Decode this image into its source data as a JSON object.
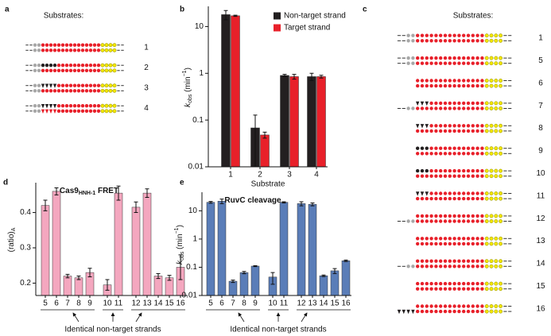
{
  "panel_labels": [
    "a",
    "b",
    "c",
    "d",
    "e"
  ],
  "substrates_a": {
    "title": "Substrates:",
    "labels": [
      "1",
      "2",
      "3",
      "4"
    ]
  },
  "substrates_c": {
    "title": "Substrates:",
    "labels": [
      "1",
      "5",
      "6",
      "7",
      "8",
      "9",
      "10",
      "11",
      "12",
      "13",
      "14",
      "15",
      "16"
    ]
  },
  "chart_data": [
    {
      "type": "bar",
      "ylabel": [
        "k",
        "obs",
        " (min",
        "−1",
        ")"
      ],
      "xlabel": "Substrate",
      "categories": [
        "1",
        "2",
        "3",
        "4"
      ],
      "series": [
        {
          "name": "Non-target strand",
          "color": "#231f20",
          "values": [
            18,
            0.068,
            0.9,
            0.85
          ],
          "errors": [
            4,
            0.06,
            0.05,
            0.15
          ]
        },
        {
          "name": "Target strand",
          "color": "#e8202a",
          "values": [
            17,
            0.048,
            0.85,
            0.85
          ],
          "errors": [
            0.5,
            0.007,
            0.1,
            0.06
          ]
        }
      ],
      "ylim": [
        0.01,
        25
      ],
      "yticks": [
        0.01,
        0.1,
        1,
        10
      ],
      "log_scale": true,
      "legend": "upper right"
    },
    {
      "type": "bar",
      "title": [
        "Cas9",
        "HNH-1",
        " FRET"
      ],
      "ylabel": [
        "(ratio)",
        "A"
      ],
      "categories": [
        "5",
        "6",
        "7",
        "8",
        "9",
        "10",
        "11",
        "12",
        "13",
        "14",
        "15",
        "16"
      ],
      "values": [
        0.42,
        0.46,
        0.22,
        0.215,
        0.23,
        0.195,
        0.455,
        0.415,
        0.455,
        0.22,
        0.215,
        0.245
      ],
      "errors": [
        0.015,
        0.01,
        0.005,
        0.005,
        0.012,
        0.015,
        0.02,
        0.015,
        0.012,
        0.007,
        0.007,
        0.035
      ],
      "color": "#f4a7bf",
      "ylim": [
        0.165,
        0.48
      ],
      "yticks": [
        0.2,
        0.3,
        0.4
      ],
      "log_scale": false,
      "annotation": "Identical non-target strands"
    },
    {
      "type": "bar",
      "title": [
        "RuvC cleavage"
      ],
      "ylabel": [
        "k",
        "obs",
        " (min",
        "−1",
        ")"
      ],
      "categories": [
        "5",
        "6",
        "7",
        "8",
        "9",
        "10",
        "11",
        "12",
        "13",
        "14",
        "15",
        "16"
      ],
      "values": [
        20,
        22,
        0.032,
        0.065,
        0.11,
        0.045,
        20,
        18,
        17,
        0.05,
        0.075,
        0.17
      ],
      "errors": [
        1.5,
        4,
        0.003,
        0.006,
        0.004,
        0.02,
        1,
        3,
        2,
        0.003,
        0.015,
        0.01
      ],
      "color": "#5a7db8",
      "ylim": [
        0.01,
        40
      ],
      "yticks": [
        0.01,
        0.1,
        1,
        10
      ],
      "log_scale": true,
      "annotation": "Identical non-target strands"
    }
  ]
}
